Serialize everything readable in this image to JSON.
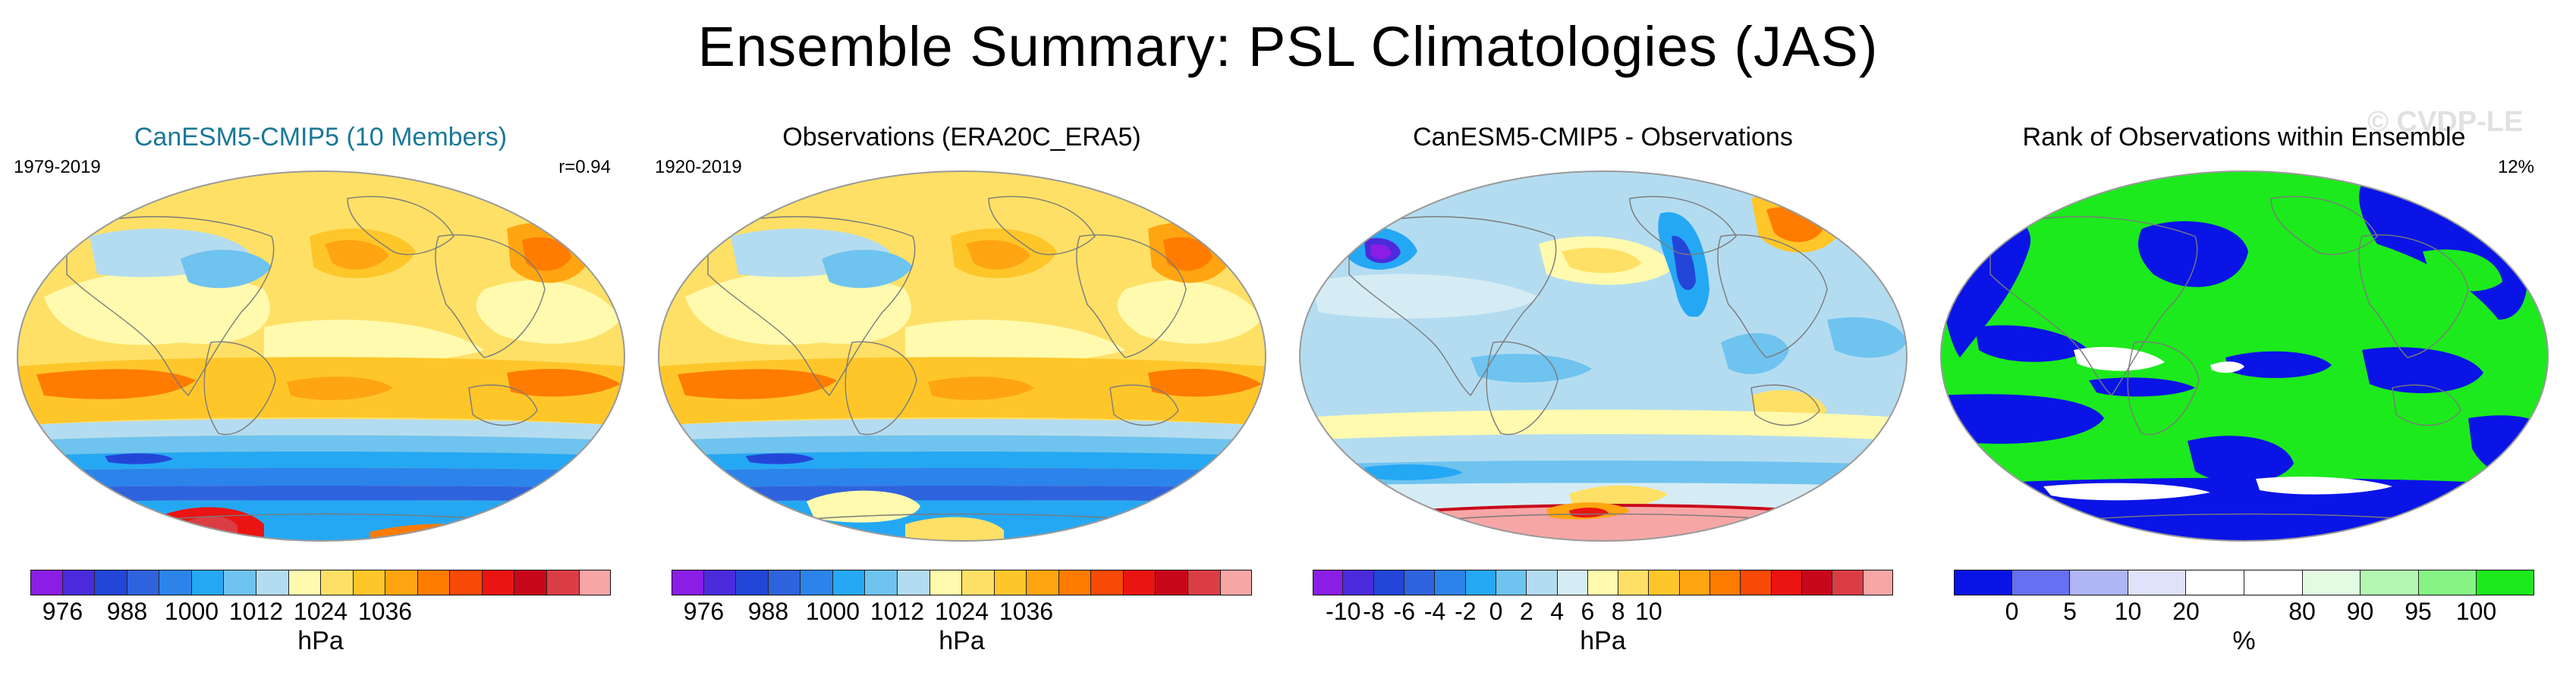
{
  "title": "Ensemble Summary: PSL Climatologies (JAS)",
  "watermark": "© CVDP-LE",
  "panels": [
    {
      "title": "CanESM5-CMIP5 (10 Members)",
      "left_label": "1979-2019",
      "right_label": "r=0.94",
      "units": "hPa",
      "colors": [
        "#8a1ee6",
        "#4b2bdc",
        "#2346d8",
        "#2f63de",
        "#2c84ea",
        "#25a8f4",
        "#6fc3ef",
        "#b4dcf0",
        "#fffaae",
        "#ffe066",
        "#ffc62a",
        "#ffa511",
        "#ff7c00",
        "#f74a06",
        "#ea1412",
        "#c8081a",
        "#db3d45",
        "#f7a6a6"
      ],
      "ticks": [
        "976",
        "988",
        "1000",
        "1012",
        "1024",
        "1036"
      ],
      "tick_positions": [
        1,
        3,
        5,
        7,
        9,
        11
      ],
      "map_style": "psl"
    },
    {
      "title": "Observations (ERA20C_ERA5)",
      "left_label": "1920-2019",
      "right_label": "",
      "units": "hPa",
      "colors": [
        "#8a1ee6",
        "#4b2bdc",
        "#2346d8",
        "#2f63de",
        "#2c84ea",
        "#25a8f4",
        "#6fc3ef",
        "#b4dcf0",
        "#fffaae",
        "#ffe066",
        "#ffc62a",
        "#ffa511",
        "#ff7c00",
        "#f74a06",
        "#ea1412",
        "#c8081a",
        "#db3d45",
        "#f7a6a6"
      ],
      "ticks": [
        "976",
        "988",
        "1000",
        "1012",
        "1024",
        "1036"
      ],
      "tick_positions": [
        1,
        3,
        5,
        7,
        9,
        11
      ],
      "map_style": "psl_obs"
    },
    {
      "title": "CanESM5-CMIP5 - Observations",
      "left_label": "",
      "right_label": "",
      "units": "hPa",
      "colors": [
        "#8a1ee6",
        "#4b2bdc",
        "#2346d8",
        "#2f63de",
        "#2c84ea",
        "#25a8f4",
        "#6fc3ef",
        "#b4dcf0",
        "#d6ecf5",
        "#fffaae",
        "#ffe066",
        "#ffc62a",
        "#ffa511",
        "#ff7c00",
        "#f74a06",
        "#ea1412",
        "#c8081a",
        "#db3d45",
        "#f7a6a6"
      ],
      "ticks": [
        "-10",
        "-8",
        "-6",
        "-4",
        "-2",
        "0",
        "2",
        "4",
        "6",
        "8",
        "10"
      ],
      "tick_positions": [
        1,
        2,
        3,
        4,
        5,
        6,
        7,
        8,
        9,
        10,
        11
      ],
      "map_style": "diff"
    },
    {
      "title": "Rank of Observations within Ensemble",
      "left_label": "",
      "right_label": "12%",
      "units": "%",
      "colors": [
        "#0a14e6",
        "#6670f0",
        "#b0b5f5",
        "#e0e2fb",
        "#ffffff",
        "#ffffff",
        "#e2fbe2",
        "#b3f7b3",
        "#85f485",
        "#1cea1c"
      ],
      "ticks": [
        "0",
        "5",
        "10",
        "20",
        "80",
        "90",
        "95",
        "100"
      ],
      "tick_positions": [
        1,
        2,
        3,
        4,
        6,
        7,
        8,
        9
      ],
      "map_style": "rank"
    }
  ]
}
